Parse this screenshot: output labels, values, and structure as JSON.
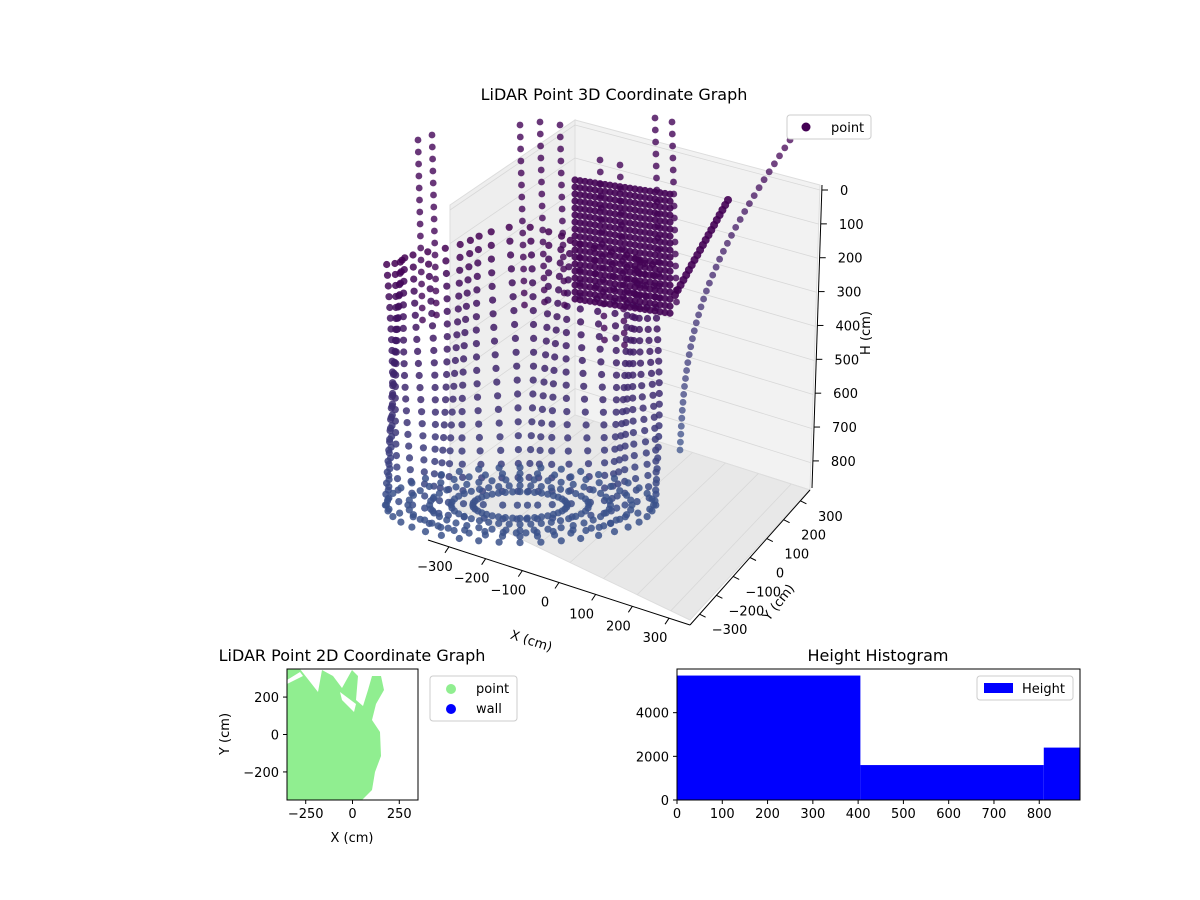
{
  "chart_data": [
    {
      "type": "scatter3d",
      "title": "LiDAR Point 3D Coordinate Graph",
      "xlabel": "X (cm)",
      "ylabel": "Y (cm)",
      "zlabel": "H (cm)",
      "xticks": [
        "−300",
        "−200",
        "−100",
        "0",
        "100",
        "200",
        "300"
      ],
      "yticks": [
        "300",
        "200",
        "100",
        "0",
        "−100",
        "−200",
        "−300"
      ],
      "zticks": [
        "0",
        "100",
        "200",
        "300",
        "400",
        "500",
        "600",
        "700",
        "800"
      ],
      "xlim": [
        -350,
        350
      ],
      "ylim": [
        -350,
        350
      ],
      "zlim": [
        0,
        880
      ],
      "legend": [
        {
          "label": "point",
          "color": "#440154"
        }
      ],
      "legend_position": "top-right",
      "colors": {
        "near": "#440154",
        "far": "#3b528b"
      }
    },
    {
      "type": "scatter",
      "title": "LiDAR Point 2D Coordinate Graph",
      "xlabel": "X (cm)",
      "ylabel": "Y (cm)",
      "xticks": [
        "−250",
        "0",
        "250"
      ],
      "yticks": [
        "200",
        "0",
        "−200"
      ],
      "xlim": [
        -350,
        350
      ],
      "ylim": [
        -350,
        350
      ],
      "series": [
        {
          "name": "point",
          "color": "#90ee90"
        },
        {
          "name": "wall",
          "color": "#0000ff"
        }
      ],
      "legend_position": "outside-right"
    },
    {
      "type": "bar",
      "title": "Height Histogram",
      "xlabel": "",
      "ylabel": "",
      "bins": [
        [
          0,
          405
        ],
        [
          405,
          810
        ],
        [
          810,
          890
        ]
      ],
      "values": [
        5700,
        1600,
        2400
      ],
      "xticks": [
        "0",
        "100",
        "200",
        "300",
        "400",
        "500",
        "600",
        "700",
        "800"
      ],
      "yticks": [
        "0",
        "2000",
        "4000"
      ],
      "xlim": [
        0,
        890
      ],
      "ylim": [
        0,
        6000
      ],
      "color": "#0000ff",
      "legend": [
        {
          "label": "Height",
          "color": "#0000ff"
        }
      ],
      "legend_position": "top-right"
    }
  ]
}
